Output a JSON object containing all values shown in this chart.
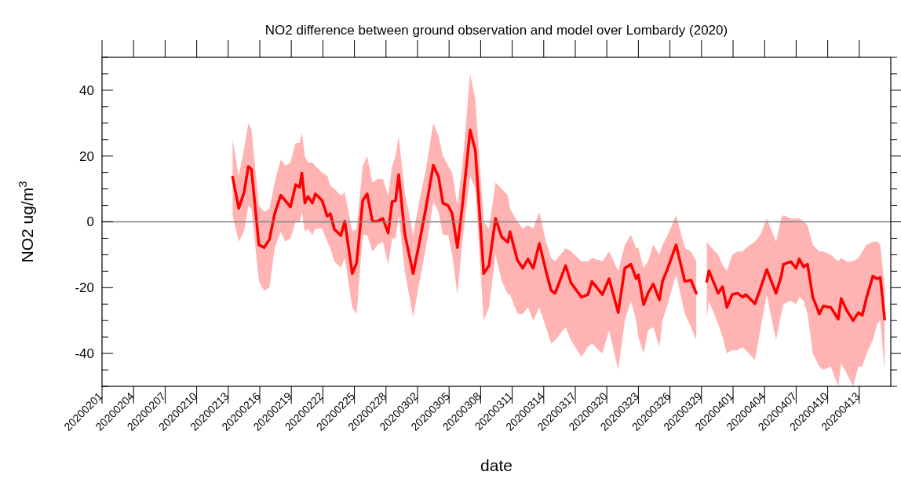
{
  "chart_data": {
    "type": "line",
    "title": "NO2 difference between ground observation and model over Lombardy (2020)",
    "xlabel": "date",
    "ylabel": "NO2  ug/m$^{3}$",
    "xlim": [
      "2020-02-01",
      "2020-04-16"
    ],
    "xticks": [
      {
        "value": "2020-02-01",
        "label": "20200201"
      },
      {
        "value": "2020-02-04",
        "label": "20200204"
      },
      {
        "value": "2020-02-07",
        "label": "20200207"
      },
      {
        "value": "2020-02-10",
        "label": "20200210"
      },
      {
        "value": "2020-02-13",
        "label": "20200213"
      },
      {
        "value": "2020-02-16",
        "label": "20200216"
      },
      {
        "value": "2020-02-19",
        "label": "20200219"
      },
      {
        "value": "2020-02-22",
        "label": "20200222"
      },
      {
        "value": "2020-02-25",
        "label": "20200225"
      },
      {
        "value": "2020-02-28",
        "label": "20200228"
      },
      {
        "value": "2020-03-02",
        "label": "20200302"
      },
      {
        "value": "2020-03-05",
        "label": "20200305"
      },
      {
        "value": "2020-03-08",
        "label": "20200308"
      },
      {
        "value": "2020-03-11",
        "label": "20200311"
      },
      {
        "value": "2020-03-14",
        "label": "20200314"
      },
      {
        "value": "2020-03-17",
        "label": "20200317"
      },
      {
        "value": "2020-03-20",
        "label": "20200320"
      },
      {
        "value": "2020-03-23",
        "label": "20200323"
      },
      {
        "value": "2020-03-26",
        "label": "20200326"
      },
      {
        "value": "2020-03-29",
        "label": "20200329"
      },
      {
        "value": "2020-04-01",
        "label": "20200401"
      },
      {
        "value": "2020-04-04",
        "label": "20200404"
      },
      {
        "value": "2020-04-07",
        "label": "20200407"
      },
      {
        "value": "2020-04-10",
        "label": "20200410"
      },
      {
        "value": "2020-04-13",
        "label": "20200413"
      }
    ],
    "ylim": [
      -50,
      50
    ],
    "yticks": [
      {
        "value": -50,
        "label": null
      },
      {
        "value": -45,
        "label": null
      },
      -40,
      {
        "value": -35,
        "label": null
      },
      {
        "value": -30,
        "label": null
      },
      {
        "value": -25,
        "label": null
      },
      -20,
      {
        "value": -15,
        "label": null
      },
      {
        "value": -10,
        "label": null
      },
      {
        "value": -5,
        "label": null
      },
      0,
      {
        "value": 5,
        "label": null
      },
      {
        "value": 10,
        "label": null
      },
      {
        "value": 15,
        "label": null
      },
      20,
      {
        "value": 25,
        "label": null
      },
      {
        "value": 30,
        "label": null
      },
      {
        "value": 35,
        "label": null
      },
      40,
      {
        "value": 45,
        "label": null
      },
      {
        "value": 50,
        "label": null
      }
    ],
    "ref_lines": [
      {
        "axis": "y",
        "value": 0,
        "color": "#808080"
      }
    ],
    "grid": false,
    "marker": "none",
    "line_style": "solid",
    "series": [
      {
        "color": "#ff0000",
        "x": [
          "2020-02-13T10:00",
          "2020-02-14T00:00",
          "2020-02-14T12:00",
          "2020-02-14T22:00",
          "2020-02-15T05:00",
          "2020-02-15T22:00",
          "2020-02-16T10:00",
          "2020-02-16T22:00",
          "2020-02-17T10:00",
          "2020-02-18T00:00",
          "2020-02-18T10:00",
          "2020-02-18T22:00",
          "2020-02-19T10:00",
          "2020-02-19T19:00",
          "2020-02-20T00:00",
          "2020-02-20T07:00",
          "2020-02-20T14:00",
          "2020-02-21T00:00",
          "2020-02-21T07:00",
          "2020-02-21T22:00",
          "2020-02-22T10:00",
          "2020-02-22T17:00",
          "2020-02-23T02:00",
          "2020-02-23T17:00",
          "2020-02-24T02:00",
          "2020-02-24T19:00",
          "2020-02-25T05:00",
          "2020-02-25T19:00",
          "2020-02-26T05:00",
          "2020-02-26T17:00",
          "2020-02-27T05:00",
          "2020-02-27T17:00",
          "2020-02-28T05:00",
          "2020-02-28T14:00",
          "2020-02-28T22:00",
          "2020-02-29T05:00",
          "2020-02-29T19:00",
          "2020-03-01T14:00",
          "2020-03-02T02:00",
          "2020-03-02T19:00",
          "2020-03-03T12:00",
          "2020-03-04T00:00",
          "2020-03-04T10:00",
          "2020-03-04T22:00",
          "2020-03-05T07:00",
          "2020-03-05T19:00",
          "2020-03-06T07:00",
          "2020-03-07T00:00",
          "2020-03-07T12:00",
          "2020-03-08T07:00",
          "2020-03-08T19:00",
          "2020-03-09T10:00",
          "2020-03-10T00:00",
          "2020-03-10T14:00",
          "2020-03-10T19:00",
          "2020-03-11T12:00",
          "2020-03-12T00:00",
          "2020-03-12T12:00",
          "2020-03-13T00:00",
          "2020-03-13T14:00",
          "2020-03-14T05:00",
          "2020-03-14T17:00",
          "2020-03-15T02:00",
          "2020-03-16T02:00",
          "2020-03-16T14:00",
          "2020-03-17T14:00",
          "2020-03-18T05:00",
          "2020-03-18T14:00",
          "2020-03-19T14:00",
          "2020-03-20T05:00",
          "2020-03-21T02:00",
          "2020-03-21T17:00",
          "2020-03-22T07:00",
          "2020-03-22T19:00",
          "2020-03-23T00:00",
          "2020-03-23T12:00",
          "2020-03-23T22:00",
          "2020-03-24T10:00",
          "2020-03-25T00:00",
          "2020-03-25T07:00",
          "2020-03-25T19:00",
          "2020-03-26T14:00",
          "2020-03-27T10:00",
          "2020-03-28T00:00",
          "2020-03-28T12:00",
          "2020-03-29T00:00",
          "2020-03-29T12:00",
          "2020-03-29T17:00",
          "2020-03-30T14:00",
          "2020-03-31T00:00",
          "2020-03-31T10:00",
          "2020-03-31T22:00",
          "2020-04-01T10:00",
          "2020-04-01T22:00",
          "2020-04-02T05:00",
          "2020-04-03T02:00",
          "2020-04-03T14:00",
          "2020-04-04T05:00",
          "2020-04-05T02:00",
          "2020-04-05T14:00",
          "2020-04-05T19:00",
          "2020-04-06T12:00",
          "2020-04-07T00:00",
          "2020-04-07T07:00",
          "2020-04-07T17:00",
          "2020-04-08T02:00",
          "2020-04-08T14:00",
          "2020-04-09T05:00",
          "2020-04-09T14:00",
          "2020-04-10T07:00",
          "2020-04-11T00:00",
          "2020-04-11T07:00",
          "2020-04-11T19:00",
          "2020-04-12T10:00",
          "2020-04-12T22:00",
          "2020-04-13T07:00",
          "2020-04-13T17:00",
          "2020-04-14T07:00",
          "2020-04-14T17:00",
          "2020-04-15T00:00",
          "2020-04-15T10:00"
        ],
        "values": [
          13.6,
          4.1,
          8.9,
          16.8,
          16.0,
          -7.0,
          -7.8,
          -5.4,
          2.5,
          8.1,
          6.5,
          4.5,
          11.3,
          10.5,
          14.8,
          5.7,
          7.7,
          5.7,
          8.5,
          6.5,
          1.7,
          2.5,
          -2.2,
          -4.2,
          0.2,
          -15.7,
          -12.5,
          6.5,
          8.5,
          0.2,
          0.2,
          1.0,
          -3.4,
          6.1,
          6.5,
          14.4,
          -3.8,
          -15.7,
          -7.8,
          4.1,
          17.2,
          13.6,
          5.7,
          4.9,
          2.5,
          -7.8,
          5.7,
          27.9,
          21.6,
          -15.7,
          -13.3,
          1.0,
          -4.6,
          -6.2,
          -3.0,
          -11.7,
          -14.1,
          -11.3,
          -14.1,
          -6.6,
          -14.9,
          -20.9,
          -21.7,
          -13.3,
          -18.5,
          -22.9,
          -22.1,
          -18.1,
          -22.1,
          -17.3,
          -27.6,
          -14.1,
          -12.9,
          -17.3,
          -16.1,
          -25.2,
          -21.7,
          -18.9,
          -23.7,
          -18.1,
          -14.1,
          -7.0,
          -18.1,
          -17.7,
          -21.7,
          null,
          -18.1,
          -14.9,
          -21.7,
          -19.7,
          -26.0,
          -22.1,
          -21.7,
          -22.9,
          -22.1,
          -24.9,
          -20.5,
          -14.5,
          -21.7,
          -16.5,
          -12.9,
          -12.1,
          -14.1,
          -11.3,
          -13.7,
          -12.9,
          -22.9,
          -28.0,
          -25.6,
          -26.0,
          -29.6,
          -23.3,
          -26.8,
          -30.0,
          -27.6,
          -28.4,
          -22.9,
          -16.5,
          -17.3,
          -16.9,
          -29.6
        ],
        "upper": [
          25,
          14,
          22,
          30,
          28,
          5,
          3,
          4,
          12,
          19,
          17,
          18,
          24,
          24,
          27,
          20,
          18,
          18,
          17,
          15,
          14,
          11,
          10,
          8,
          9,
          -3,
          -2,
          17,
          20,
          12,
          13,
          13,
          8,
          17,
          20,
          26,
          9,
          -4,
          5,
          16,
          30,
          26,
          20,
          17,
          15,
          5,
          18,
          45,
          37,
          0,
          -2,
          12,
          10,
          8,
          4,
          0,
          -2,
          -1,
          -2,
          3,
          -6,
          -11,
          -12,
          -8,
          -9,
          -12,
          -12,
          -11,
          -12,
          -9,
          -15,
          -7,
          -4,
          -8,
          -8,
          -14,
          -12,
          -7,
          -10,
          -7,
          -4,
          2,
          -8,
          -9,
          -12,
          null,
          -6,
          -7,
          -10,
          -13,
          -15,
          -10,
          -9,
          -9,
          -8,
          -6,
          -4,
          1,
          -6,
          1,
          2,
          1,
          1,
          1,
          0,
          -1,
          -7,
          -9,
          -9,
          -10,
          -12,
          -11,
          -12,
          -12,
          -11,
          -9,
          -7,
          -6,
          -6,
          -7,
          -20
        ],
        "lower": [
          2,
          -6,
          -3,
          5,
          4,
          -18,
          -21,
          -20,
          -8,
          -3,
          -6,
          -5,
          0,
          0,
          3,
          -3,
          -2,
          -4,
          -2,
          -2,
          -6,
          -8,
          -12,
          -14,
          -11,
          -26,
          -28,
          -4,
          -4,
          -9,
          -7,
          -6,
          -13,
          -5,
          -5,
          2,
          -15,
          -29,
          -20,
          -8,
          6,
          3,
          -4,
          -4,
          -10,
          -22,
          -5,
          14,
          10,
          -30,
          -26,
          -10,
          -18,
          -22,
          -22,
          -28,
          -28,
          -26,
          -30,
          -26,
          -32,
          -37,
          -36,
          -32,
          -36,
          -41,
          -38,
          -37,
          -40,
          -33,
          -45,
          -30,
          -24,
          -30,
          -35,
          -40,
          -33,
          -32,
          -38,
          -30,
          -25,
          -16,
          -28,
          -32,
          -36,
          null,
          -29,
          -24,
          -31,
          -35,
          -40,
          -39,
          -39,
          -38,
          -39,
          -42,
          -33,
          -22,
          -36,
          -28,
          -25,
          -24,
          -25,
          -23,
          -24,
          -28,
          -40,
          -44,
          -45,
          -44,
          -50,
          -43,
          -46,
          -50,
          -44,
          -44,
          -40,
          -36,
          -31,
          -30,
          -45
        ]
      }
    ]
  }
}
